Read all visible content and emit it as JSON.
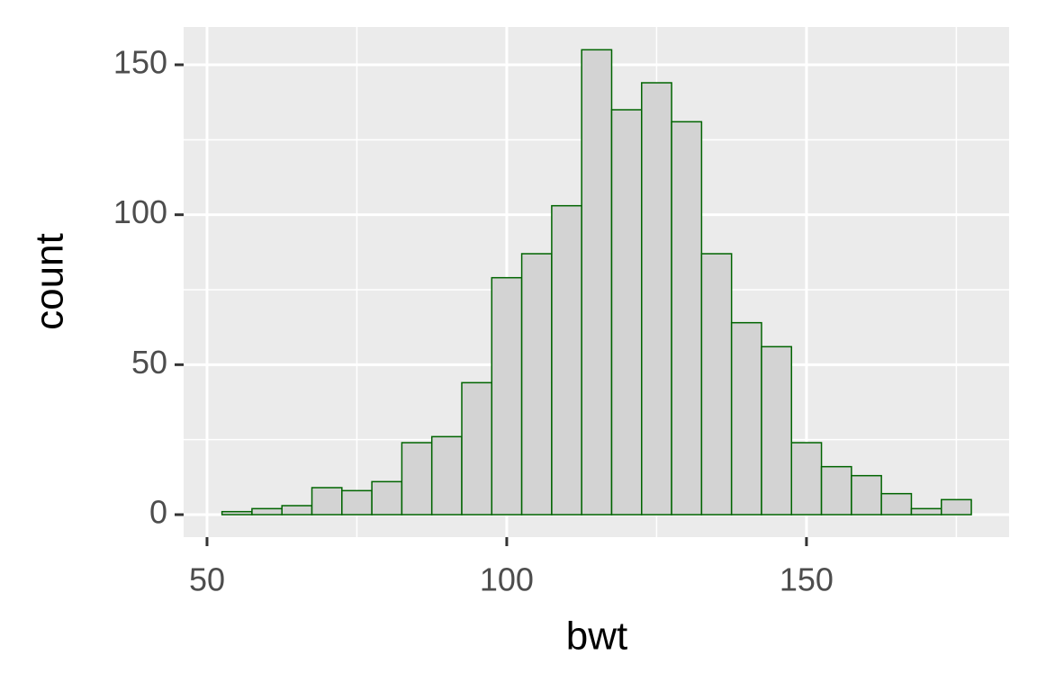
{
  "chart_data": {
    "type": "histogram",
    "x_label": "bwt",
    "y_label": "count",
    "bins": [
      52.5,
      57.5,
      62.5,
      67.5,
      72.5,
      77.5,
      82.5,
      87.5,
      92.5,
      97.5,
      102.5,
      107.5,
      112.5,
      117.5,
      122.5,
      127.5,
      132.5,
      137.5,
      142.5,
      147.5,
      152.5,
      157.5,
      162.5,
      167.5,
      172.5,
      177.5
    ],
    "values": [
      1,
      2,
      3,
      9,
      8,
      11,
      24,
      26,
      44,
      79,
      87,
      103,
      155,
      135,
      144,
      131,
      87,
      64,
      56,
      24,
      16,
      13,
      7,
      2,
      5
    ],
    "fill": "#d3d3d3",
    "color": "#006400",
    "xlim": [
      46.1,
      183.8
    ],
    "ylim": [
      -7.5,
      162.6
    ],
    "xticks": [
      50,
      100,
      150
    ],
    "yticks": [
      0,
      50,
      100,
      150
    ],
    "xminor_ticks": [
      75,
      125,
      175
    ],
    "yminor_ticks": [
      25,
      75,
      125
    ],
    "grid": true
  }
}
